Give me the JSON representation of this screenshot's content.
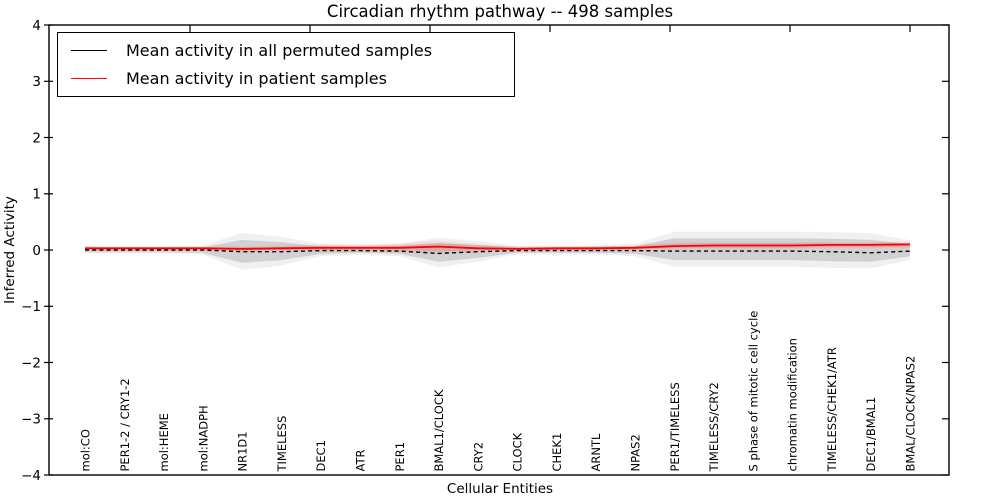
{
  "page": {
    "title": "Circadian rhythm pathway -- 498 samples"
  },
  "axes": {
    "ylabel": "Inferred Activity",
    "xlabel": "Cellular Entities"
  },
  "legend": {
    "items": [
      {
        "label": "Mean activity in all permuted samples",
        "color": "#000000"
      },
      {
        "label": "Mean activity in patient samples",
        "color": "#ff0000"
      }
    ]
  },
  "chart_data": {
    "type": "line",
    "title": "Circadian rhythm pathway -- 498 samples",
    "xlabel": "Cellular Entities",
    "ylabel": "Inferred Activity",
    "ylim": [
      -4,
      4
    ],
    "yticks": [
      -4,
      -3,
      -2,
      -1,
      0,
      1,
      2,
      3,
      4
    ],
    "grid": false,
    "legend_position": "upper left",
    "categories": [
      "mol:CO",
      "PER1-2 / CRY1-2",
      "mol:HEME",
      "mol:NADPH",
      "NR1D1",
      "TIMELESS",
      "DEC1",
      "ATR",
      "PER1",
      "BMAL1/CLOCK",
      "CRY2",
      "CLOCK",
      "CHEK1",
      "ARNTL",
      "NPAS2",
      "PER1/TIMELESS",
      "TIMELESS/CRY2",
      "S phase of mitotic cell cycle",
      "chromatin modification",
      "TIMELESS/CHEK1/ATR",
      "DEC1/BMAL1",
      "BMAL/CLOCK/NPAS2"
    ],
    "series": [
      {
        "name": "Mean activity in all permuted samples",
        "color": "#000000",
        "style": "dashed",
        "values": [
          0.0,
          0.0,
          0.0,
          0.0,
          -0.03,
          -0.03,
          -0.01,
          -0.01,
          -0.02,
          -0.06,
          -0.03,
          -0.01,
          -0.01,
          -0.01,
          -0.01,
          -0.02,
          -0.02,
          -0.02,
          -0.02,
          -0.03,
          -0.05,
          -0.02
        ]
      },
      {
        "name": "Mean activity in patient samples",
        "color": "#ff0000",
        "style": "solid",
        "values": [
          0.03,
          0.03,
          0.03,
          0.03,
          0.02,
          0.03,
          0.04,
          0.04,
          0.04,
          0.06,
          0.03,
          0.02,
          0.03,
          0.03,
          0.04,
          0.07,
          0.08,
          0.08,
          0.08,
          0.09,
          0.09,
          0.1
        ]
      }
    ],
    "bands": [
      {
        "name": "permuted-samples-std",
        "color": "#000000",
        "opacity": 0.13,
        "upper": [
          0.04,
          0.04,
          0.04,
          0.05,
          0.18,
          0.14,
          0.07,
          0.05,
          0.07,
          0.12,
          0.09,
          0.05,
          0.05,
          0.05,
          0.07,
          0.21,
          0.21,
          0.21,
          0.21,
          0.2,
          0.18,
          0.11
        ],
        "lower": [
          -0.04,
          -0.04,
          -0.04,
          -0.05,
          -0.23,
          -0.18,
          -0.07,
          -0.05,
          -0.07,
          -0.21,
          -0.14,
          -0.05,
          -0.05,
          -0.05,
          -0.07,
          -0.18,
          -0.18,
          -0.18,
          -0.18,
          -0.2,
          -0.21,
          -0.11
        ]
      },
      {
        "name": "patient-samples-std",
        "color": "#ff0000",
        "opacity": 0.13,
        "upper": [
          0.05,
          0.05,
          0.05,
          0.05,
          0.05,
          0.06,
          0.08,
          0.08,
          0.09,
          0.13,
          0.08,
          0.05,
          0.05,
          0.06,
          0.07,
          0.11,
          0.12,
          0.12,
          0.12,
          0.12,
          0.12,
          0.13
        ],
        "lower": [
          0.01,
          0.01,
          0.01,
          0.01,
          -0.01,
          0.0,
          0.0,
          0.0,
          -0.01,
          -0.02,
          -0.01,
          0.0,
          0.0,
          0.0,
          0.01,
          0.03,
          0.04,
          0.04,
          0.04,
          0.05,
          0.05,
          0.06
        ]
      }
    ]
  }
}
